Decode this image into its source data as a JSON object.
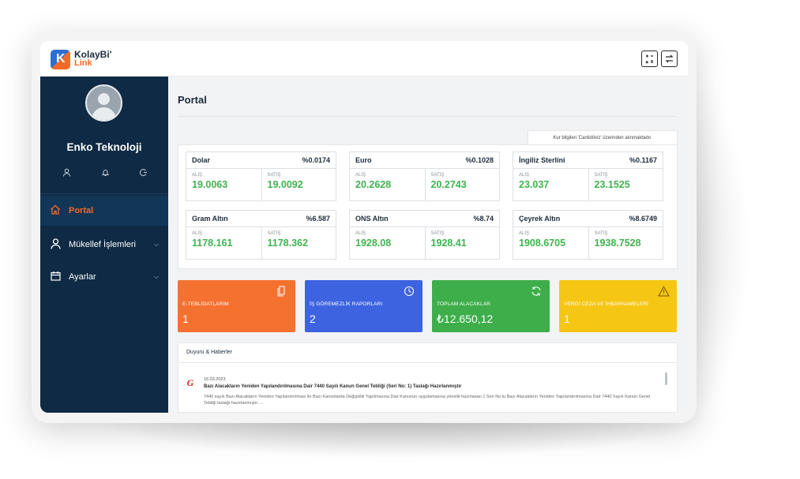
{
  "app": {
    "logo_mark": "K",
    "logo_line1": "KolayBi'",
    "logo_line2": "Link"
  },
  "topbar": {
    "icons": [
      "calculator-icon",
      "exchange-icon"
    ]
  },
  "sidebar": {
    "company_name": "Enko Teknoloji",
    "quick_icons": [
      "user-icon",
      "bell-icon",
      "logout-icon"
    ],
    "items": [
      {
        "label": "Portal",
        "icon": "home-icon",
        "active": true
      },
      {
        "label": "Mükellef İşlemleri",
        "icon": "user-icon",
        "has_submenu": true
      },
      {
        "label": "Ayarlar",
        "icon": "calendar-icon",
        "has_submenu": true
      }
    ]
  },
  "main": {
    "page_title": "Portal",
    "rate_note": "Kur bilgileri 'Canlidöviz' üzerinden alınmaktadır.",
    "buy_label": "ALIŞ",
    "sell_label": "SATIŞ",
    "rates": [
      {
        "name": "Dolar",
        "change": "%0.0174",
        "buy": "19.0063",
        "sell": "19.0092"
      },
      {
        "name": "Euro",
        "change": "%0.1028",
        "buy": "20.2628",
        "sell": "20.2743"
      },
      {
        "name": "İngiliz Sterlini",
        "change": "%0.1167",
        "buy": "23.037",
        "sell": "23.1525"
      },
      {
        "name": "Gram Altın",
        "change": "%6.587",
        "buy": "1178.161",
        "sell": "1178.362"
      },
      {
        "name": "ONS Altın",
        "change": "%8.74",
        "buy": "1928.08",
        "sell": "1928.41"
      },
      {
        "name": "Çeyrek Altın",
        "change": "%8.6749",
        "buy": "1908.6705",
        "sell": "1938.7528"
      }
    ],
    "stats": [
      {
        "title": "E-TEBLİGATLARIM",
        "value": "1",
        "color": "#f5712f",
        "icon": "document-icon"
      },
      {
        "title": "İŞ GÖREMEZLİK RAPORLARI",
        "value": "2",
        "color": "#3d63e0",
        "icon": "clock-icon"
      },
      {
        "title": "TOPLAM ALACAKLAR",
        "value": "₺12.650,12",
        "color": "#3dae4a",
        "icon": "refresh-icon"
      },
      {
        "title": "VERGİ CEZA VE İHBARNAMELERİ",
        "value": "1",
        "color": "#f6c614",
        "icon": "warning-icon"
      }
    ],
    "news": {
      "header": "Duyuru & Haberler",
      "items": [
        {
          "date": "16.03.2023",
          "title": "Bazı Alacakların Yeniden Yapılandırılmasına Dair 7440 Sayılı Kanun Genel Tebliği (Seri No: 1) Taslağı Hazırlanmıştır",
          "text": "7440 sayılı Bazı Alacakların Yeniden Yapılandırılması ile Bazı Kanunlarda Değişiklik Yapılmasına Dair Kanunun uygulamasına yönelik hazırlanan 1 Seri No.lu Bazı Alacakların Yeniden Yapılandırılmasına Dair 7440 Sayılı Kanun Genel Tebliği taslağı hazırlanmıştır. ..."
        }
      ]
    }
  }
}
